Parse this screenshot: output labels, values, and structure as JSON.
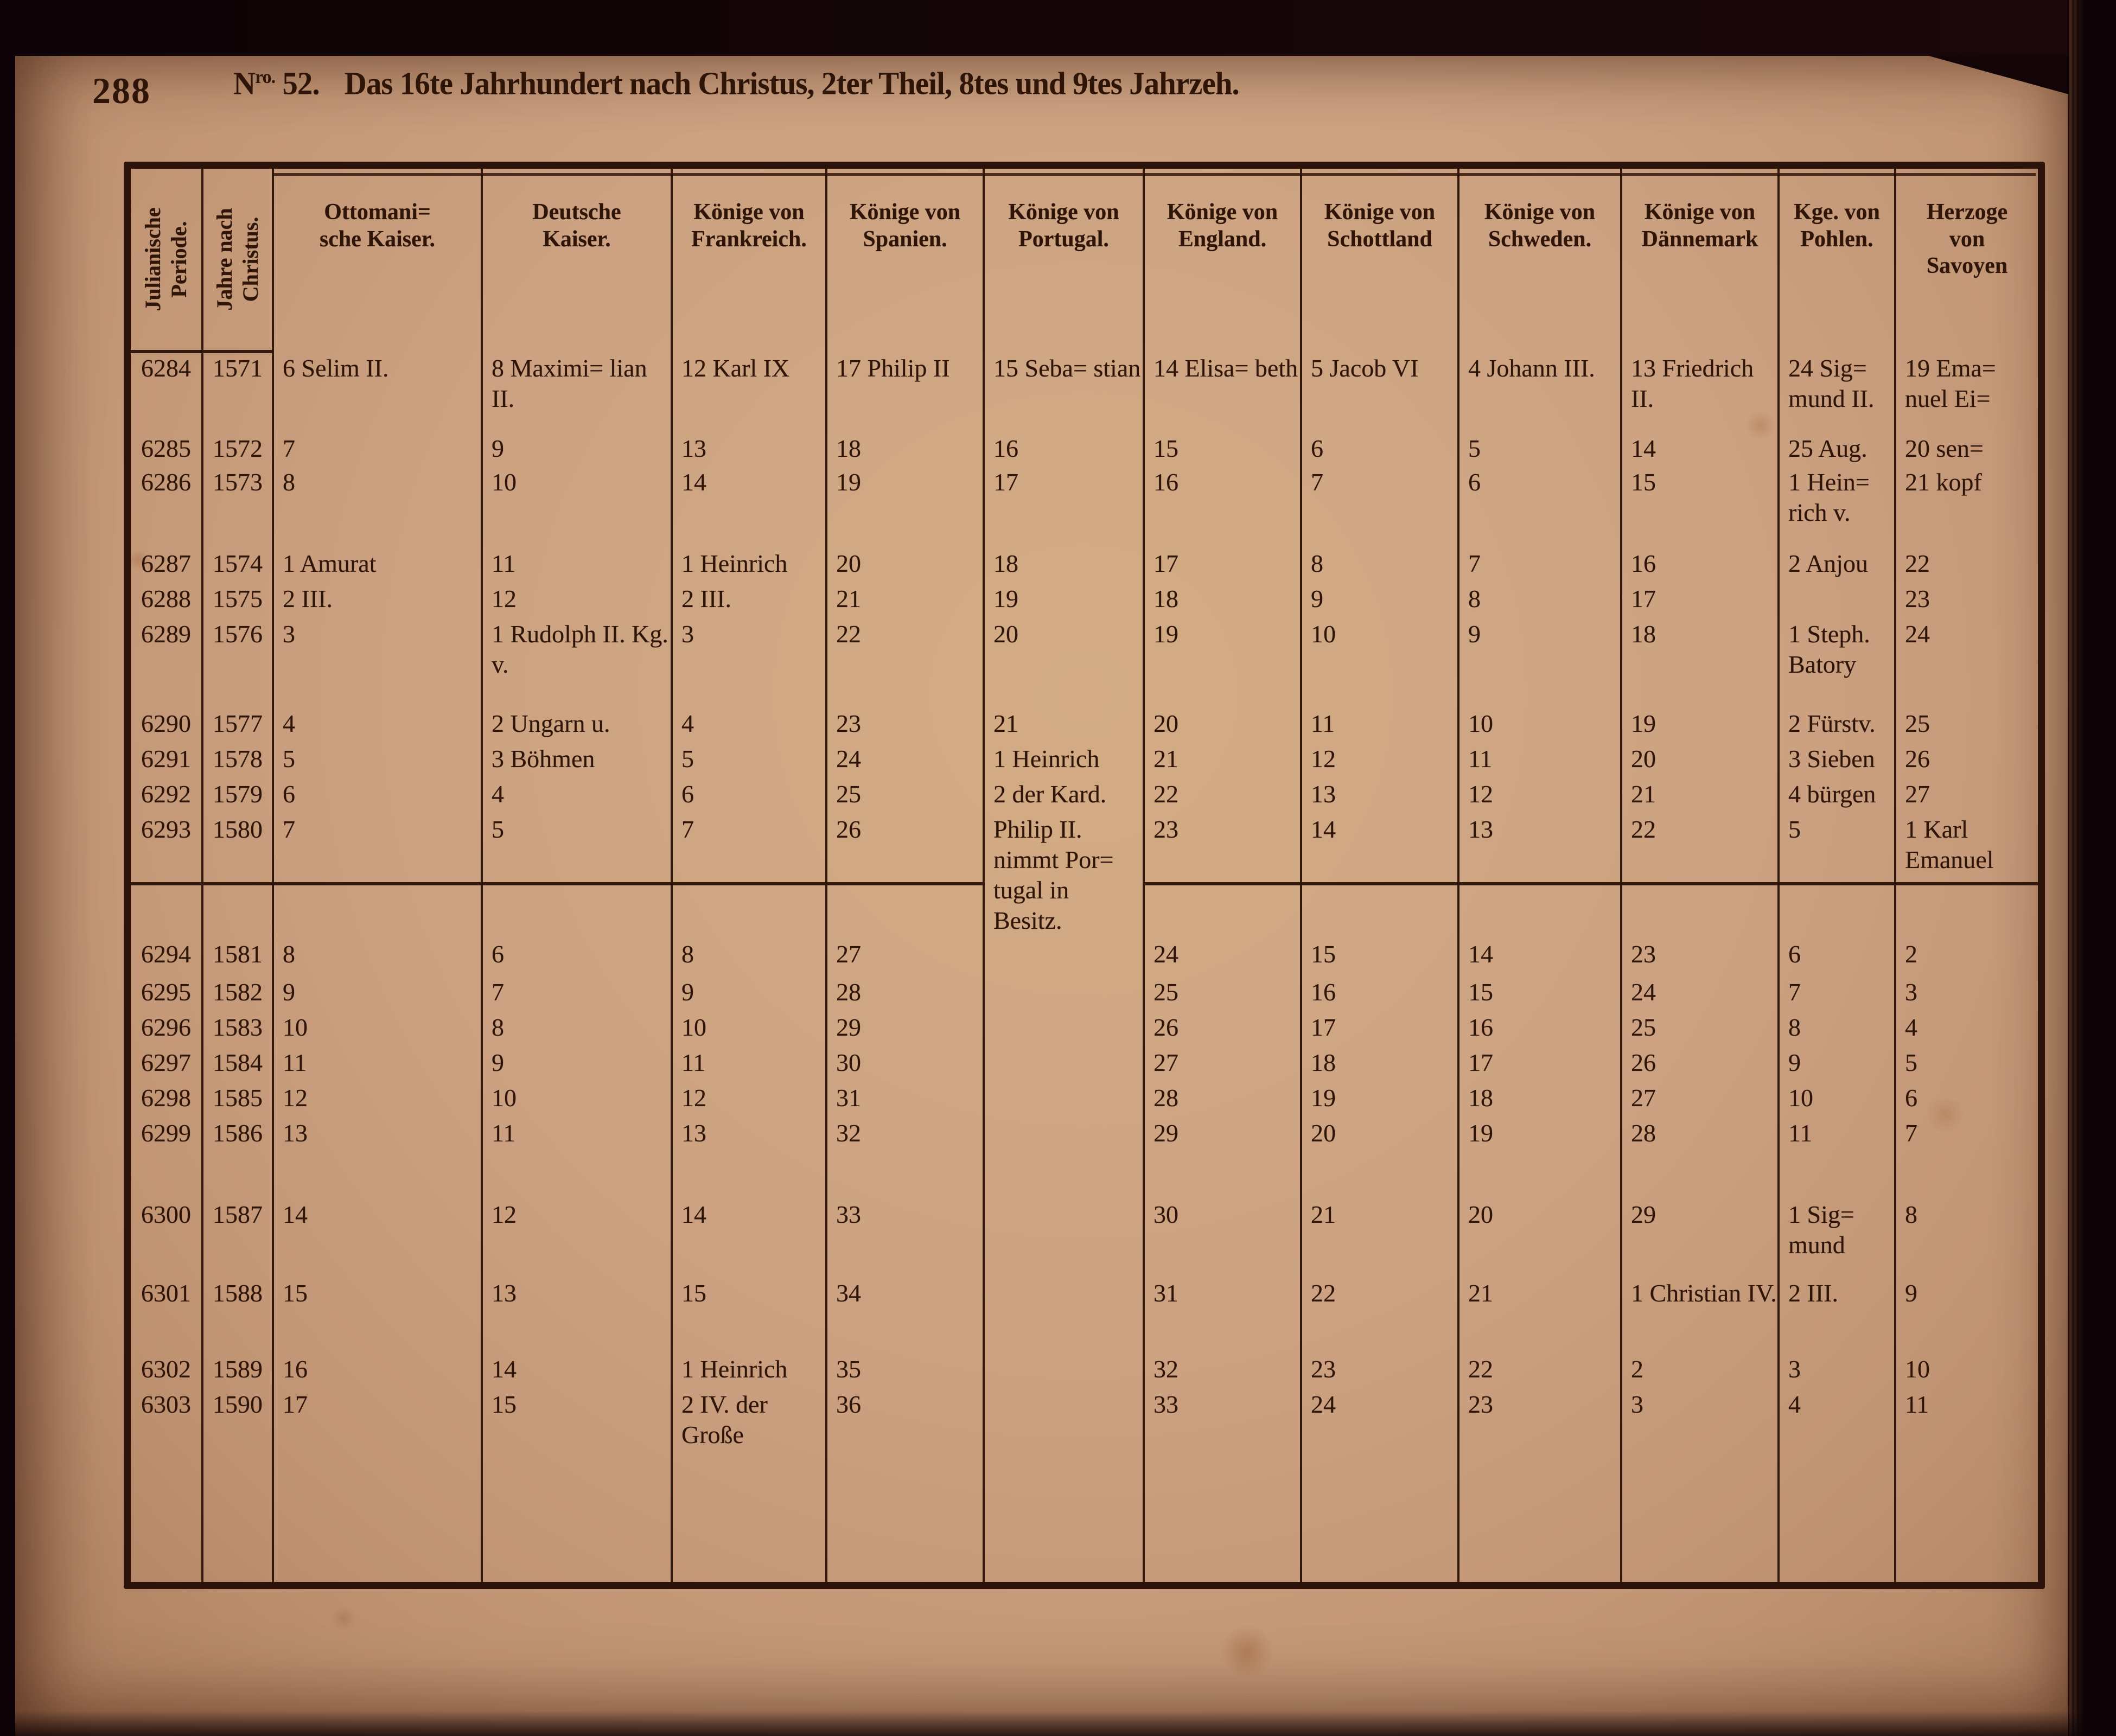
{
  "page": {
    "number": "288",
    "series_prefix": "N",
    "series_sup": "ro.",
    "series_number": "52.",
    "heading": "Das 16te Jahrhundert nach Christus, 2ter Theil, 8tes und 9tes Jahrzeh."
  },
  "table": {
    "columns": [
      {
        "id": "julianische-periode",
        "orientation": "vertical",
        "lines": [
          "Julianische",
          "Periode."
        ]
      },
      {
        "id": "jahre-nach-christus",
        "orientation": "vertical",
        "lines": [
          "Jahre nach",
          "Christus."
        ]
      },
      {
        "id": "ottomanische-kaiser",
        "lines": [
          "Ottomani=",
          "sche Kaiser."
        ]
      },
      {
        "id": "deutsche-kaiser",
        "lines": [
          "Deutsche",
          "Kaiser."
        ]
      },
      {
        "id": "koenige-von-frankreich",
        "lines": [
          "Könige von",
          "Frankreich."
        ]
      },
      {
        "id": "koenige-von-spanien",
        "lines": [
          "Könige von",
          "Spanien."
        ]
      },
      {
        "id": "koenige-von-portugal",
        "lines": [
          "Könige von",
          "Portugal."
        ]
      },
      {
        "id": "koenige-von-england",
        "lines": [
          "Könige von",
          "England."
        ]
      },
      {
        "id": "koenige-von-schottland",
        "lines": [
          "Könige von",
          "Schottland"
        ]
      },
      {
        "id": "koenige-von-schweden",
        "lines": [
          "Könige von",
          "Schweden."
        ]
      },
      {
        "id": "koenige-von-daennemark",
        "lines": [
          "Könige von",
          "Dännemark"
        ]
      },
      {
        "id": "kge-von-pohlen",
        "lines": [
          "Kge. von",
          "Pohlen."
        ]
      },
      {
        "id": "herzoge-von-savoyen",
        "lines": [
          "Herzoge",
          "von",
          "Savoyen"
        ]
      }
    ],
    "rows": [
      {
        "year": "1571",
        "cells": [
          "6284",
          "1571",
          "6 Selim II.",
          "8 Maximi= lian II.",
          "12 Karl IX",
          "17 Philip II",
          "15 Seba= stian",
          "14 Elisa= beth",
          "5 Jacob VI",
          "4 Johann III.",
          "13 Friedrich II.",
          "24 Sig= mund II.",
          "19 Ema= nuel Ei="
        ]
      },
      {
        "year": "1572",
        "cells": [
          "6285",
          "1572",
          "7",
          "9",
          "13",
          "18",
          "16",
          "15",
          "6",
          "5",
          "14",
          "25 Aug.",
          "20 sen="
        ]
      },
      {
        "year": "1573",
        "cells": [
          "6286",
          "1573",
          "8",
          "10",
          "14",
          "19",
          "17",
          "16",
          "7",
          "6",
          "15",
          "1 Hein= rich v.",
          "21 kopf"
        ]
      },
      {
        "year": "1574",
        "cells": [
          "6287",
          "1574",
          "1 Amurat",
          "11",
          "1 Heinrich",
          "20",
          "18",
          "17",
          "8",
          "7",
          "16",
          "2 Anjou",
          "22"
        ]
      },
      {
        "year": "1575",
        "cells": [
          "6288",
          "1575",
          "2 III.",
          "12",
          "2 III.",
          "21",
          "19",
          "18",
          "9",
          "8",
          "17",
          "",
          "23"
        ]
      },
      {
        "year": "1576",
        "cells": [
          "6289",
          "1576",
          "3",
          "1 Rudolph II. Kg. v.",
          "3",
          "22",
          "20",
          "19",
          "10",
          "9",
          "18",
          "1 Steph. Batory",
          "24"
        ]
      },
      {
        "year": "1577",
        "cells": [
          "6290",
          "1577",
          "4",
          "2 Ungarn u.",
          "4",
          "23",
          "21",
          "20",
          "11",
          "10",
          "19",
          "2 Fürstv.",
          "25"
        ]
      },
      {
        "year": "1578",
        "cells": [
          "6291",
          "1578",
          "5",
          "3 Böhmen",
          "5",
          "24",
          "1 Heinrich",
          "21",
          "12",
          "11",
          "20",
          "3 Sieben",
          "26"
        ]
      },
      {
        "year": "1579",
        "cells": [
          "6292",
          "1579",
          "6",
          "4",
          "6",
          "25",
          "2 der Kard.",
          "22",
          "13",
          "12",
          "21",
          "4 bürgen",
          "27"
        ]
      },
      {
        "year": "1580",
        "cells": [
          "6293",
          "1580",
          "7",
          "5",
          "7",
          "26",
          "Philip II. nimmt Por= tugal in Besitz.",
          "23",
          "14",
          "13",
          "22",
          "5",
          "1 Karl Emanuel"
        ]
      },
      {
        "year": "1581",
        "cells": [
          "6294",
          "1581",
          "8",
          "6",
          "8",
          "27",
          "",
          "24",
          "15",
          "14",
          "23",
          "6",
          "2"
        ]
      },
      {
        "year": "1582",
        "cells": [
          "6295",
          "1582",
          "9",
          "7",
          "9",
          "28",
          "",
          "25",
          "16",
          "15",
          "24",
          "7",
          "3"
        ]
      },
      {
        "year": "1583",
        "cells": [
          "6296",
          "1583",
          "10",
          "8",
          "10",
          "29",
          "",
          "26",
          "17",
          "16",
          "25",
          "8",
          "4"
        ]
      },
      {
        "year": "1584",
        "cells": [
          "6297",
          "1584",
          "11",
          "9",
          "11",
          "30",
          "",
          "27",
          "18",
          "17",
          "26",
          "9",
          "5"
        ]
      },
      {
        "year": "1585",
        "cells": [
          "6298",
          "1585",
          "12",
          "10",
          "12",
          "31",
          "",
          "28",
          "19",
          "18",
          "27",
          "10",
          "6"
        ]
      },
      {
        "year": "1586",
        "cells": [
          "6299",
          "1586",
          "13",
          "11",
          "13",
          "32",
          "",
          "29",
          "20",
          "19",
          "28",
          "11",
          "7"
        ]
      },
      {
        "year": "1587",
        "cells": [
          "6300",
          "1587",
          "14",
          "12",
          "14",
          "33",
          "",
          "30",
          "21",
          "20",
          "29",
          "1 Sig= mund",
          "8"
        ]
      },
      {
        "year": "1588",
        "cells": [
          "6301",
          "1588",
          "15",
          "13",
          "15",
          "34",
          "",
          "31",
          "22",
          "21",
          "1 Christian IV.",
          "2 III.",
          "9"
        ]
      },
      {
        "year": "1589",
        "cells": [
          "6302",
          "1589",
          "16",
          "14",
          "1 Heinrich",
          "35",
          "",
          "32",
          "23",
          "22",
          "2",
          "3",
          "10"
        ]
      },
      {
        "year": "1590",
        "cells": [
          "6303",
          "1590",
          "17",
          "15",
          "2 IV. der Große",
          "36",
          "",
          "33",
          "24",
          "23",
          "3",
          "4",
          "11"
        ]
      }
    ]
  },
  "colors": {
    "paper": "#cca282",
    "ink": "#2f1508",
    "rule": "#33180c",
    "background": "#0d0306"
  }
}
